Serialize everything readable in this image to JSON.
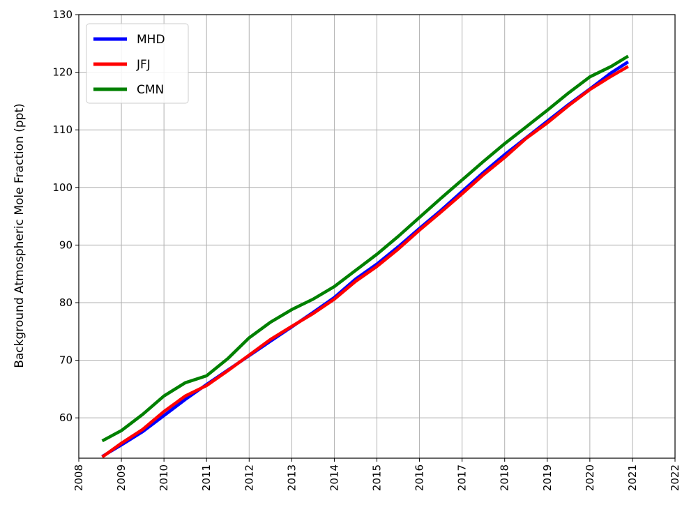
{
  "chart_data": {
    "type": "line",
    "title": "",
    "xlabel": "",
    "ylabel": "Background Atmospheric Mole Fraction (ppt)",
    "xlim": [
      2008,
      2022
    ],
    "ylim": [
      53,
      130
    ],
    "xticks": [
      2008,
      2009,
      2010,
      2011,
      2012,
      2013,
      2014,
      2015,
      2016,
      2017,
      2018,
      2019,
      2020,
      2021,
      2022
    ],
    "yticks": [
      60,
      70,
      80,
      90,
      100,
      110,
      120,
      130
    ],
    "grid": true,
    "legend_position": "top-left",
    "series": [
      {
        "name": "MHD",
        "color": "#0000ff",
        "x": [
          2008.55,
          2009.0,
          2009.5,
          2010.0,
          2010.5,
          2011.0,
          2011.5,
          2012.0,
          2012.5,
          2013.0,
          2013.5,
          2014.0,
          2014.5,
          2015.0,
          2015.5,
          2016.0,
          2016.5,
          2017.0,
          2017.5,
          2018.0,
          2018.5,
          2019.0,
          2019.5,
          2020.0,
          2020.5,
          2020.9
        ],
        "y": [
          53.3,
          55.3,
          57.6,
          60.4,
          63.2,
          65.8,
          68.3,
          70.8,
          73.3,
          75.8,
          78.3,
          80.9,
          84.1,
          86.7,
          89.7,
          92.9,
          96.0,
          99.3,
          102.6,
          105.7,
          108.6,
          111.5,
          114.4,
          117.1,
          119.9,
          121.8
        ]
      },
      {
        "name": "JFJ",
        "color": "#ff0000",
        "x": [
          2008.55,
          2009.0,
          2009.5,
          2010.0,
          2010.5,
          2011.0,
          2011.5,
          2012.0,
          2012.5,
          2013.0,
          2013.5,
          2014.0,
          2014.5,
          2015.0,
          2015.5,
          2016.0,
          2016.5,
          2017.0,
          2017.5,
          2018.0,
          2018.5,
          2019.0,
          2019.5,
          2020.0,
          2020.5,
          2020.9
        ],
        "y": [
          53.2,
          55.6,
          58.0,
          61.1,
          63.8,
          65.6,
          68.2,
          70.9,
          73.6,
          75.9,
          78.1,
          80.6,
          83.7,
          86.3,
          89.3,
          92.6,
          95.7,
          98.9,
          102.2,
          105.2,
          108.5,
          111.2,
          114.2,
          117.0,
          119.3,
          121.0
        ]
      },
      {
        "name": "CMN",
        "color": "#008000",
        "x": [
          2008.55,
          2009.0,
          2009.5,
          2010.0,
          2010.5,
          2011.0,
          2011.5,
          2012.0,
          2012.5,
          2013.0,
          2013.5,
          2014.0,
          2014.5,
          2015.0,
          2015.5,
          2016.0,
          2016.5,
          2017.0,
          2017.5,
          2018.0,
          2018.5,
          2019.0,
          2019.5,
          2020.0,
          2020.5,
          2020.9
        ],
        "y": [
          56.0,
          57.8,
          60.6,
          63.8,
          66.1,
          67.3,
          70.3,
          73.9,
          76.6,
          78.8,
          80.6,
          82.8,
          85.6,
          88.4,
          91.5,
          94.8,
          98.1,
          101.3,
          104.5,
          107.6,
          110.5,
          113.4,
          116.4,
          119.2,
          121.0,
          122.8
        ]
      }
    ]
  }
}
